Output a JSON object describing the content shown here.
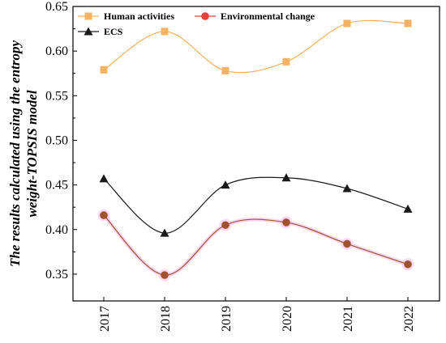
{
  "chart_data": {
    "type": "line",
    "ylabel_lines": [
      "The results calculated using the entropy",
      "weight-TOPSIS model"
    ],
    "xlabel": "",
    "categories": [
      "2017",
      "2018",
      "2019",
      "2020",
      "2021",
      "2022"
    ],
    "ylim": [
      0.32,
      0.65
    ],
    "yticks": [
      "0.35",
      "0.40",
      "0.45",
      "0.50",
      "0.55",
      "0.60",
      "0.65"
    ],
    "smooth": true,
    "grid": false,
    "legend_position": "top-left",
    "series": [
      {
        "name": "Human activities",
        "values": [
          0.579,
          0.622,
          0.578,
          0.588,
          0.631,
          0.631
        ],
        "color": "#F5B260",
        "marker": "square"
      },
      {
        "name": "Environmental change",
        "values": [
          0.416,
          0.349,
          0.405,
          0.408,
          0.384,
          0.361
        ],
        "color": "#E8403B",
        "line_color": "#A0522D",
        "marker": "circle"
      },
      {
        "name": "ECS",
        "values": [
          0.457,
          0.396,
          0.45,
          0.458,
          0.446,
          0.423
        ],
        "color": "#1A1A1A",
        "marker": "triangle"
      }
    ]
  }
}
